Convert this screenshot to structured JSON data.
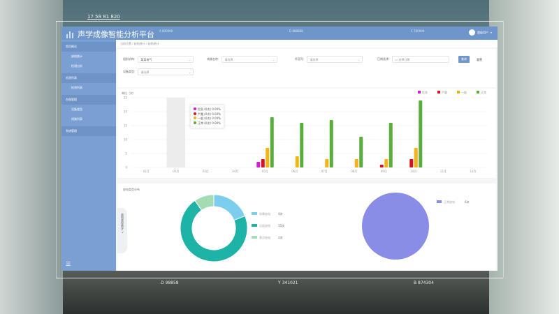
{
  "hud": {
    "top_readout": "17 58 81 820",
    "bottom_left": "D 98858",
    "bottom_center": "Y 341021",
    "bottom_right": "B 874304"
  },
  "header": {
    "title": "声学成像智能分析平台",
    "labels": [
      "A 800000",
      "D 888888",
      "C 700000"
    ],
    "user": "超级用户"
  },
  "sidebar": {
    "items": [
      {
        "label": "首页概况",
        "type": "top"
      },
      {
        "label": "缺陷统计",
        "type": "selected"
      },
      {
        "label": "检测分析",
        "type": "sub"
      },
      {
        "label": "检测列表",
        "type": "top"
      },
      {
        "label": "检测列表",
        "type": "sub"
      },
      {
        "label": "台账管理",
        "type": "top"
      },
      {
        "label": "设备类型",
        "type": "sub"
      },
      {
        "label": "线路列表",
        "type": "sub"
      },
      {
        "label": "系统管理",
        "type": "top"
      }
    ]
  },
  "breadcrumb": "当前位置 / 缺陷统计 / 缺陷统计",
  "filters": {
    "org_label": "组织机构:",
    "org_value": "某某电气",
    "station_label": "线路名称:",
    "station_placeholder": "请选择",
    "tower_label": "杆塔号:",
    "tower_placeholder": "请选择",
    "date_label": "日期选择:",
    "date_placeholder": "选择日期",
    "device_label": "设备类型:",
    "device_placeholder": "请选择",
    "search": "查询",
    "reset": "重置"
  },
  "chart_data": [
    {
      "type": "bar",
      "ylabel": "单位（次）",
      "ylim": [
        0,
        25
      ],
      "yticks": [
        0,
        5,
        10,
        15,
        20,
        25
      ],
      "grid": true,
      "legend": "top-right",
      "categories": [
        "01月",
        "02月",
        "03月",
        "04月",
        "05月",
        "06月",
        "07月",
        "08月",
        "09月",
        "10月",
        "11月",
        "12月"
      ],
      "series": [
        {
          "name": "危急",
          "color": "#d11fd1",
          "values": [
            0,
            0,
            0,
            0,
            2,
            0,
            0,
            0,
            0,
            0,
            0,
            0
          ]
        },
        {
          "name": "严重",
          "color": "#d8121f",
          "values": [
            0,
            0,
            0,
            0,
            3,
            0,
            0,
            0,
            1,
            3,
            0,
            0
          ]
        },
        {
          "name": "一般",
          "color": "#f5b21a",
          "values": [
            0,
            0,
            0,
            0,
            7,
            4,
            3,
            3,
            3,
            7,
            0,
            0
          ]
        },
        {
          "name": "正常",
          "color": "#5aad3c",
          "values": [
            0,
            0,
            0,
            0,
            18,
            16,
            17,
            11,
            16,
            24,
            0,
            0
          ]
        }
      ],
      "tooltip": [
        "危急 (0次) 0.00%",
        "严重 (0次) 0.00%",
        "一般 (0次) 0.00%",
        "正常 (0次) 0.00%"
      ]
    },
    {
      "type": "pie",
      "title": "放电类型分布",
      "donut": true,
      "slices": [
        {
          "name": "电晕放电",
          "value": 4,
          "label": "4次",
          "color": "#7dcdef"
        },
        {
          "name": "沿面放电",
          "value": 15,
          "label": "15次",
          "color": "#1db3a6"
        },
        {
          "name": "悬浮放电",
          "value": 2,
          "label": "2次",
          "color": "#a3dbb2"
        }
      ]
    },
    {
      "type": "pie",
      "slices": [
        {
          "name": "正常放电",
          "value": 6,
          "label": "6次",
          "color": "#8a8de6"
        }
      ]
    }
  ],
  "side_tab": "放电类型统计 >"
}
